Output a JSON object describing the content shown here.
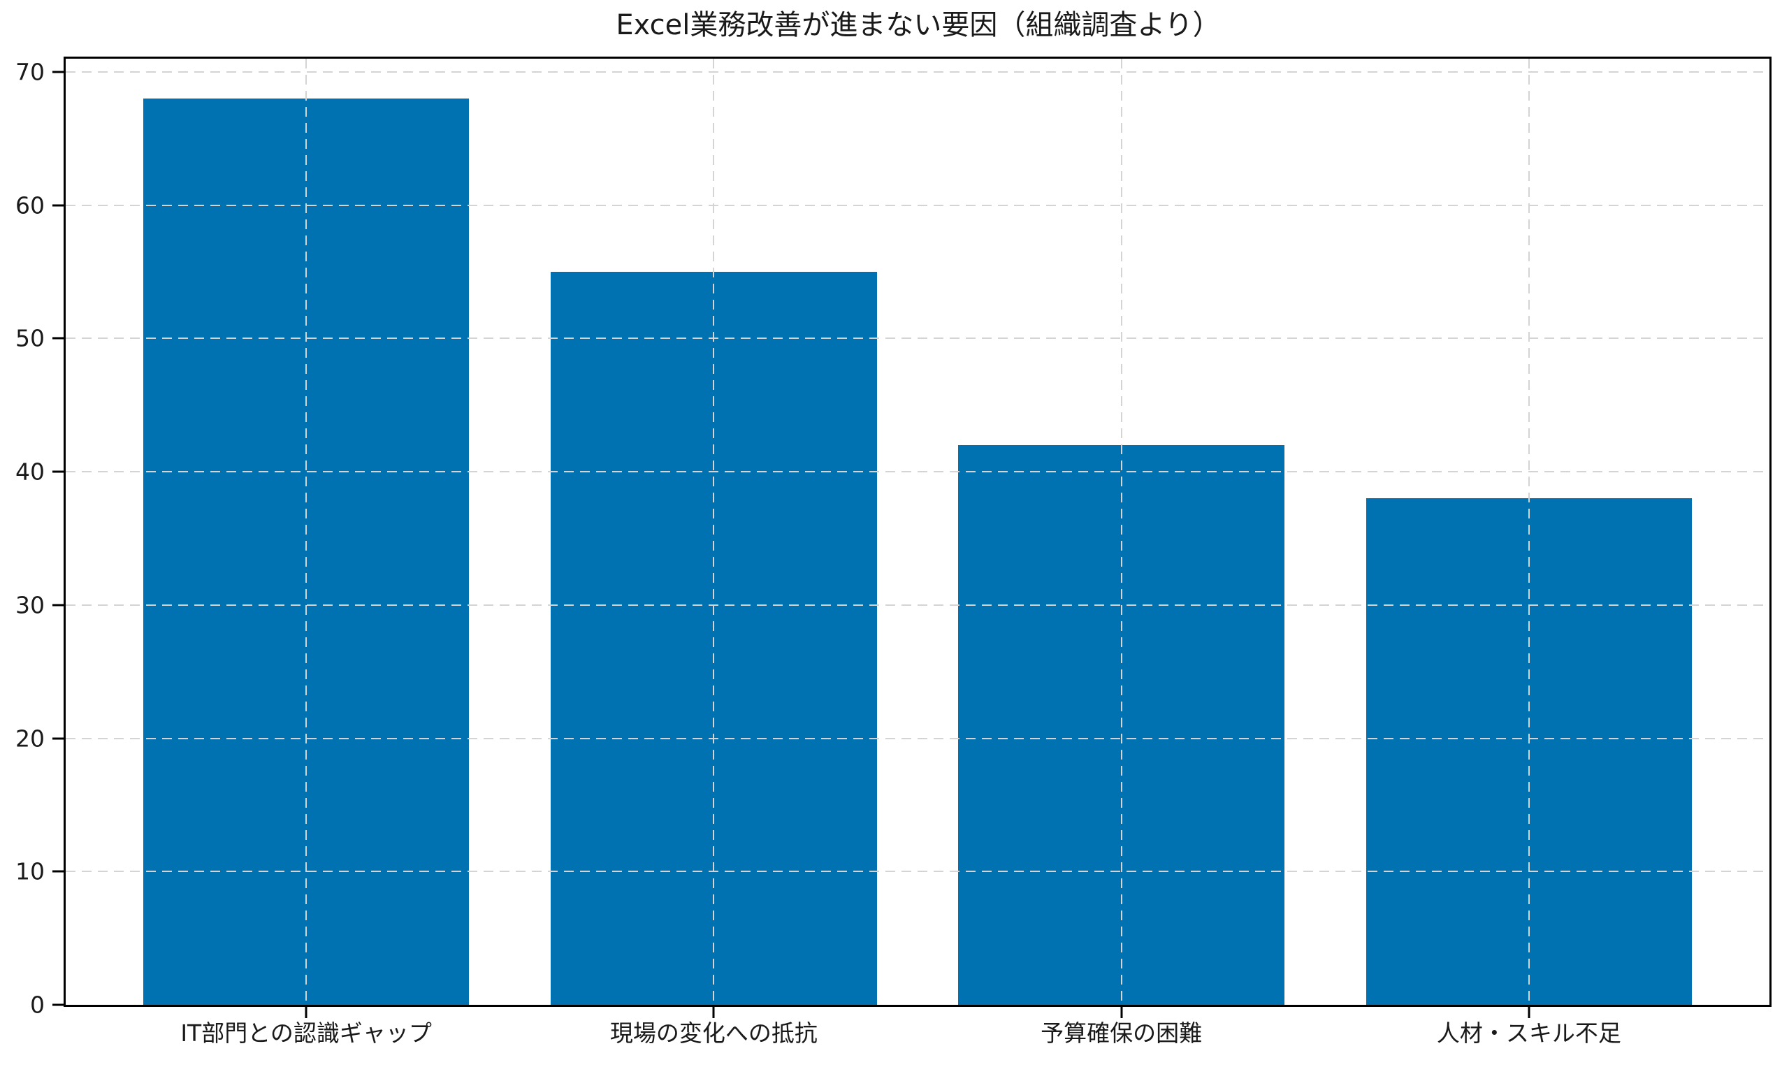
{
  "chart_data": {
    "type": "bar",
    "title": "Excel業務改善が進まない要因（組織調査より）",
    "categories": [
      "IT部門との認識ギャップ",
      "現場の変化への抵抗",
      "予算確保の困難",
      "人材・スキル不足"
    ],
    "values": [
      68,
      55,
      42,
      38
    ],
    "xlabel": "",
    "ylabel": "",
    "yticks": [
      0,
      10,
      20,
      30,
      40,
      50,
      60,
      70
    ],
    "ylim": [
      0,
      71
    ],
    "xlim": [
      -0.59,
      3.59
    ],
    "bar_width": 0.8,
    "grid": true,
    "grid_style": "dashed",
    "legend": "none",
    "colors": {
      "bar": "#0072b2",
      "grid": "#d4d4d4",
      "axis": "#000000",
      "text": "#1a1a1a",
      "background": "#ffffff"
    }
  }
}
